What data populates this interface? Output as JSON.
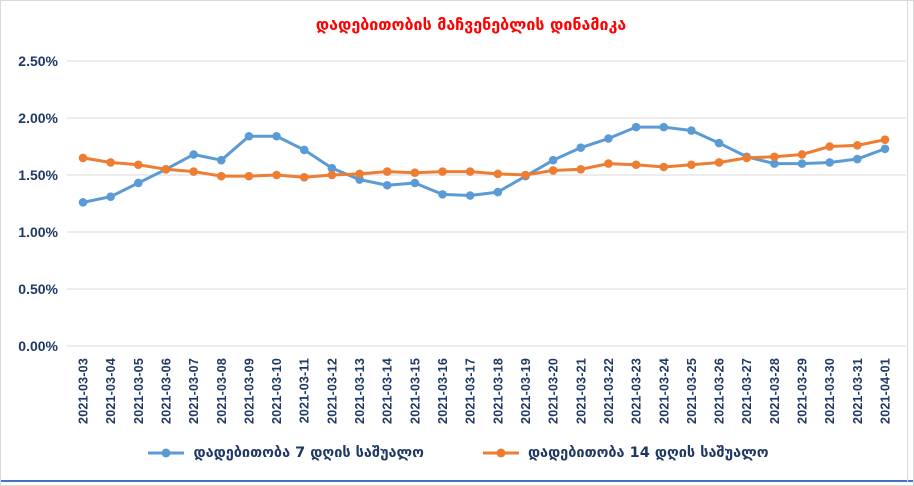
{
  "colors": {
    "title": "#FF0000",
    "axis_text": "#1F3864",
    "legend_text": "#1F3864",
    "gridline": "#D9D9D9",
    "series_blue": "#5B9BD5",
    "series_orange": "#ED7D31",
    "bottom_edge": "#4472C4",
    "frame": "#D9D9D9",
    "background": "#FFFFFF"
  },
  "chart_data": {
    "type": "line",
    "title": "დადებითობის მაჩვენებლის დინამიკა",
    "xlabel": "",
    "ylabel": "",
    "ylim": [
      0,
      2.5
    ],
    "y_ticks": [
      "0.00%",
      "0.50%",
      "1.00%",
      "1.50%",
      "2.00%",
      "2.50%"
    ],
    "grid": true,
    "legend_position": "bottom",
    "unit": "%",
    "categories": [
      "2021-03-03",
      "2021-03-04",
      "2021-03-05",
      "2021-03-06",
      "2021-03-07",
      "2021-03-08",
      "2021-03-09",
      "2021-03-10",
      "2021-03-11",
      "2021-03-12",
      "2021-03-13",
      "2021-03-14",
      "2021-03-15",
      "2021-03-16",
      "2021-03-17",
      "2021-03-18",
      "2021-03-19",
      "2021-03-20",
      "2021-03-21",
      "2021-03-22",
      "2021-03-23",
      "2021-03-24",
      "2021-03-25",
      "2021-03-26",
      "2021-03-27",
      "2021-03-28",
      "2021-03-29",
      "2021-03-30",
      "2021-03-31",
      "2021-04-01"
    ],
    "series": [
      {
        "name": "დადებითობა 7 დღის საშუალო",
        "color": "#5B9BD5",
        "values": [
          1.26,
          1.31,
          1.43,
          1.55,
          1.68,
          1.63,
          1.84,
          1.84,
          1.72,
          1.56,
          1.46,
          1.41,
          1.43,
          1.33,
          1.32,
          1.35,
          1.49,
          1.63,
          1.74,
          1.82,
          1.92,
          1.92,
          1.89,
          1.78,
          1.66,
          1.6,
          1.6,
          1.61,
          1.64,
          1.73
        ]
      },
      {
        "name": "დადებითობა 14 დღის საშუალო",
        "color": "#ED7D31",
        "values": [
          1.65,
          1.61,
          1.59,
          1.55,
          1.53,
          1.49,
          1.49,
          1.5,
          1.48,
          1.5,
          1.51,
          1.53,
          1.52,
          1.53,
          1.53,
          1.51,
          1.5,
          1.54,
          1.55,
          1.6,
          1.59,
          1.57,
          1.59,
          1.61,
          1.65,
          1.66,
          1.68,
          1.75,
          1.76,
          1.81
        ]
      }
    ]
  }
}
